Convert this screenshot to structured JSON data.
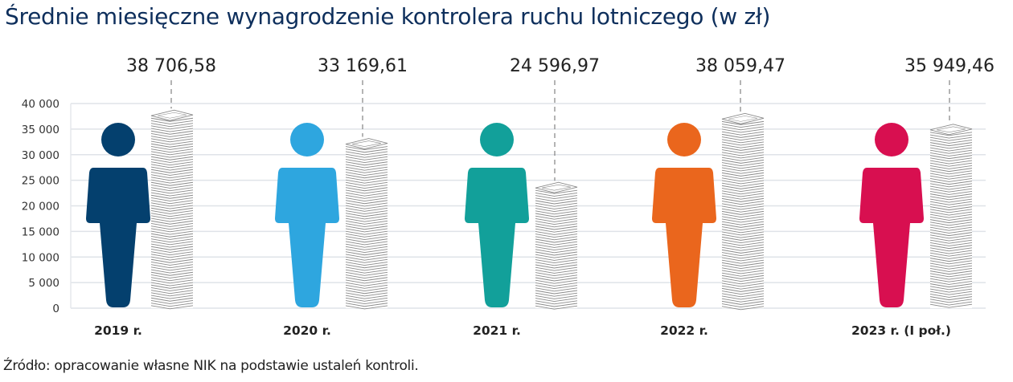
{
  "title": "Średnie miesięczne wynagrodzenie kontrolera ruchu lotniczego (w zł)",
  "source": "Źródło: opracowanie własne NIK na podstawie ustaleń kontroli.",
  "chart_data": {
    "type": "bar",
    "title": "Średnie miesięczne wynagrodzenie kontrolera ruchu lotniczego (w zł)",
    "xlabel": "",
    "ylabel": "zł",
    "ylim": [
      0,
      40000
    ],
    "yticks": [
      0,
      5000,
      10000,
      15000,
      20000,
      25000,
      30000,
      35000,
      40000
    ],
    "ytick_labels": [
      "0",
      "5 000",
      "10 000",
      "15 000",
      "20 000",
      "25 000",
      "30 000",
      "35 000",
      "40 000"
    ],
    "grid": true,
    "legend": "none",
    "categories": [
      "2019 r.",
      "2020 r.",
      "2021 r.",
      "2022 r.",
      "2023 r. (I poł.)"
    ],
    "values": [
      38706.58,
      33169.61,
      24596.97,
      38059.47,
      35949.46
    ],
    "value_labels": [
      "38 706,58",
      "33 169,61",
      "24 596,97",
      "38 059,47",
      "35 949,46"
    ],
    "colors": [
      "#04406e",
      "#2ea6df",
      "#12a09a",
      "#ea661d",
      "#d80f50"
    ],
    "bar_style": "stack-of-banknotes pictogram next to person icon"
  }
}
